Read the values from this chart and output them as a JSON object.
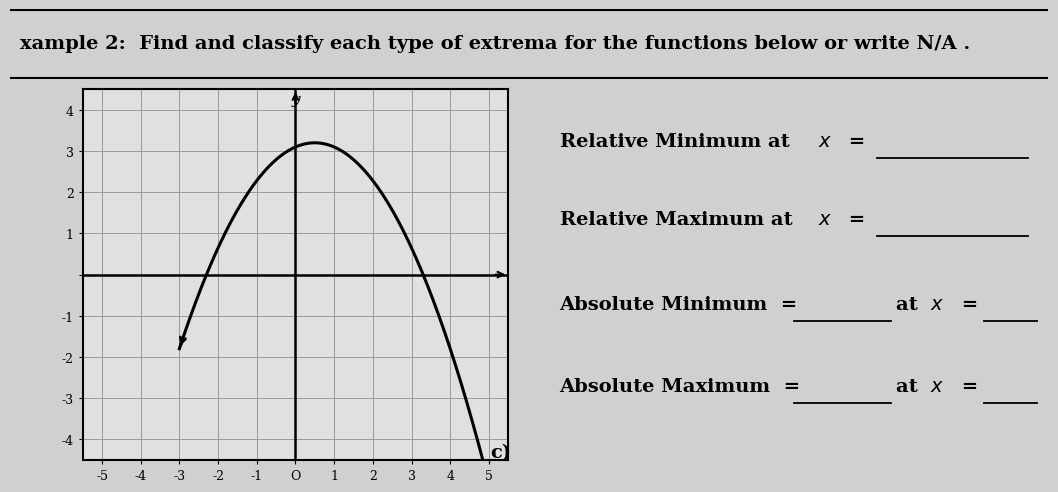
{
  "title": "xample 2:  Find and classify each type of extrema for the functions below or write N/A .",
  "bg_color": "#d0d0d0",
  "graph_bg_color": "#c8c8c8",
  "graph_inner_bg": "#e0e0e0",
  "right_bg_color": "#d8d8d8",
  "curve_color": "#000000",
  "grid_color": "#999999",
  "axis_color": "#000000",
  "x_ticks": [
    -5,
    -4,
    -3,
    -2,
    -1,
    0,
    1,
    2,
    3,
    4,
    5
  ],
  "y_ticks": [
    -4,
    -3,
    -2,
    -1,
    0,
    1,
    2,
    3,
    4
  ],
  "xlim": [
    -5.5,
    5.5
  ],
  "ylim": [
    -4.5,
    4.5
  ],
  "curve_x_start": -3.0,
  "curve_x_end": 5.0,
  "curve_peak_x": 0.5,
  "curve_peak_y": 3.2,
  "curve_start_y": -1.8,
  "line1": "Relative Minimum at $x$ =",
  "line2": "Relative Maximum at $x$ =",
  "line3_a": "Absolute Minimum  =",
  "line3_b": "at $x$ =",
  "line4_a": "Absolute Maximum  =",
  "line4_b": "at $x$ =",
  "label_c": "c)",
  "font_size_title": 14,
  "font_size_text": 14,
  "font_size_axis": 9
}
